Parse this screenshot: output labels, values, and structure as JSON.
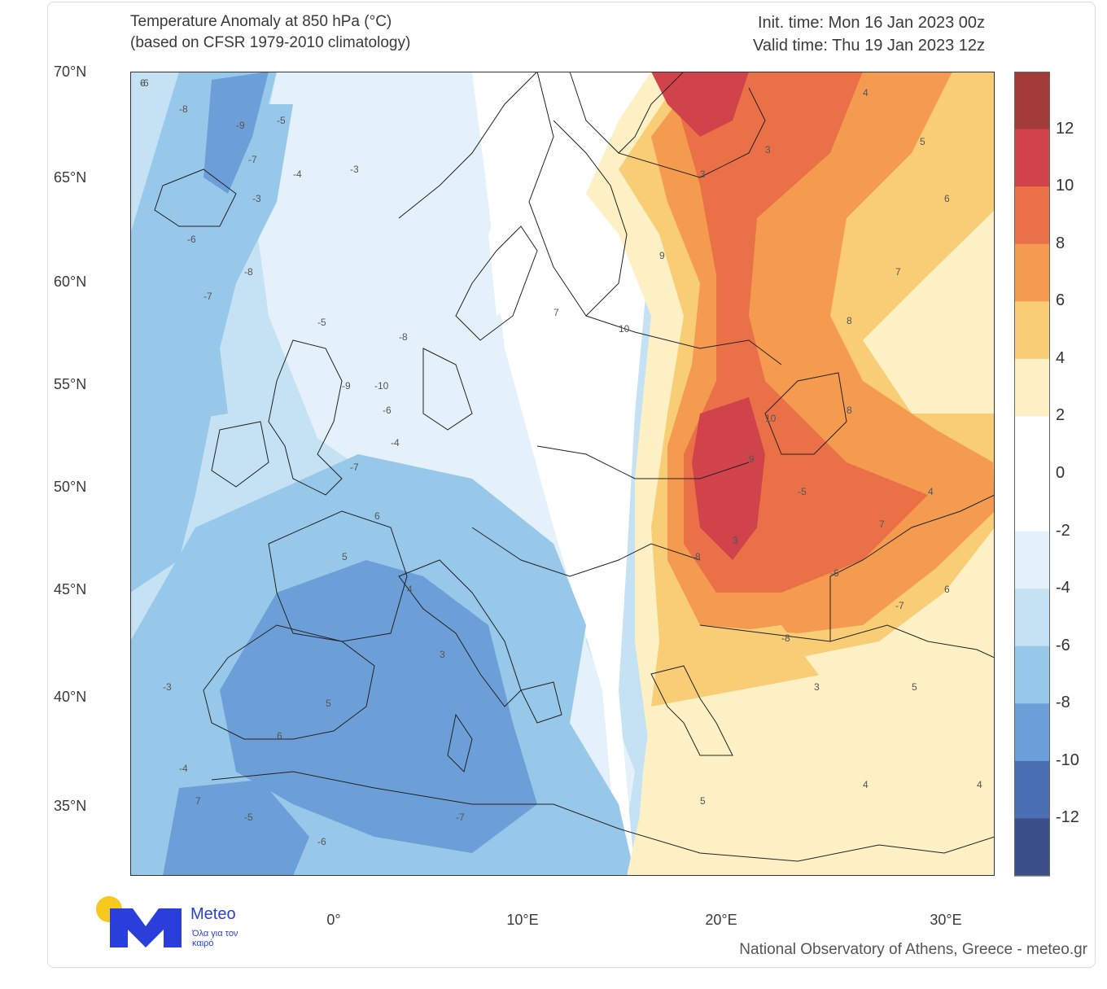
{
  "title": {
    "line1": "Temperature Anomaly at 850 hPa (°C)",
    "line2": "(based on CFSR 1979-2010 climatology)",
    "init_time": "Init. time: Mon 16 Jan 2023 00z",
    "valid_time": "Valid time: Thu 19 Jan 2023 12z"
  },
  "latitudes": [
    "70°N",
    "65°N",
    "60°N",
    "55°N",
    "50°N",
    "45°N",
    "40°N",
    "35°N"
  ],
  "longitudes": [
    "0°",
    "10°E",
    "20°E",
    "30°E"
  ],
  "colorbar": {
    "labels": [
      "12",
      "10",
      "8",
      "6",
      "4",
      "2",
      "0",
      "-2",
      "-4",
      "-6",
      "-8",
      "-10",
      "-12"
    ],
    "colors": [
      "#a33b3b",
      "#d0434a",
      "#ea7048",
      "#f49b50",
      "#f8cd75",
      "#fdf0c4",
      "#ffffff",
      "#ffffff",
      "#e4f1fa",
      "#c4e2f4",
      "#97c8ea",
      "#6c9fd8",
      "#4a6fb3",
      "#3a4e8a"
    ]
  },
  "map_labels": [
    "-6",
    "-8",
    "-9",
    "-7",
    "-5",
    "-4",
    "-3",
    "-6",
    "-7",
    "-8",
    "-5",
    "-9",
    "-10",
    "-8",
    "-7",
    "-6",
    "-4",
    "-3",
    "3",
    "4",
    "5",
    "6",
    "7",
    "8",
    "9",
    "10",
    "8",
    "7",
    "6",
    "5",
    "4",
    "3",
    "9",
    "10",
    "7",
    "6",
    "5",
    "4",
    "3",
    "-5",
    "-6",
    "-7",
    "-8",
    "3",
    "4",
    "5",
    "6",
    "7",
    "-3",
    "-4",
    "-5",
    "-6",
    "-7",
    "-8",
    "3",
    "4",
    "5",
    "6"
  ],
  "logo": {
    "name": "Meteo",
    "tagline": "Όλα για τον καιρό"
  },
  "footer": "National Observatory of Athens, Greece - meteo.gr",
  "accent": "#2a3edb"
}
